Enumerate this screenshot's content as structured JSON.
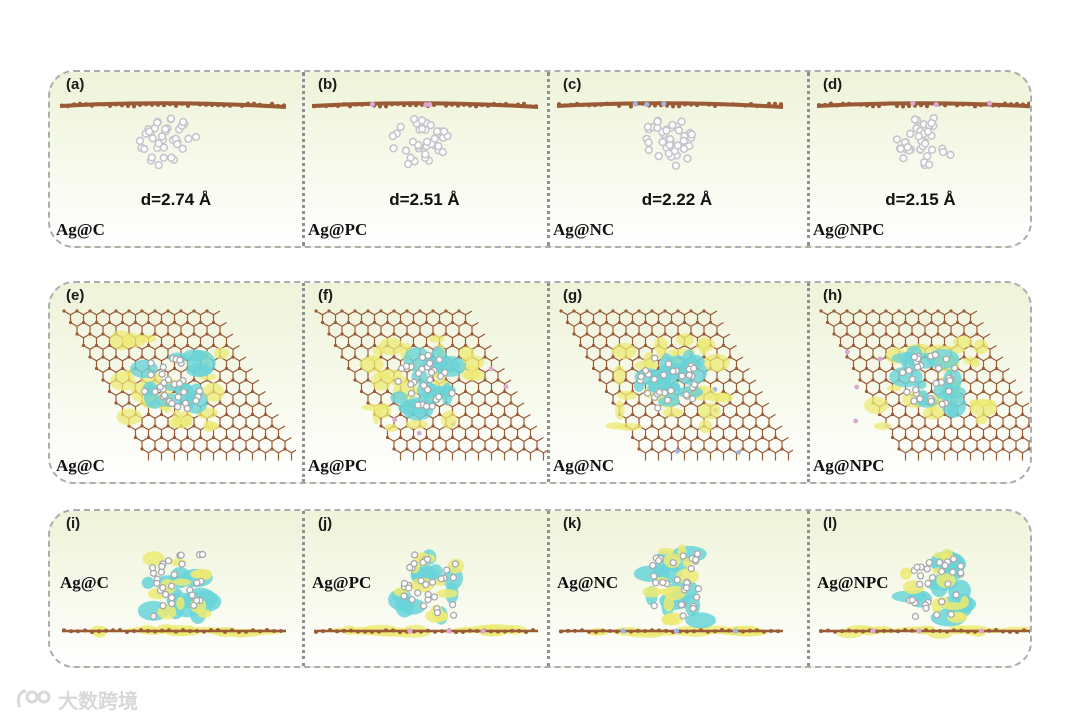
{
  "rows": [
    {
      "panels": [
        {
          "label": "(a)",
          "name": "Ag@C",
          "distance": "d=2.74 Å",
          "variant": "C"
        },
        {
          "label": "(b)",
          "name": "Ag@PC",
          "distance": "d=2.51 Å",
          "variant": "PC"
        },
        {
          "label": "(c)",
          "name": "Ag@NC",
          "distance": "d=2.22 Å",
          "variant": "NC"
        },
        {
          "label": "(d)",
          "name": "Ag@NPC",
          "distance": "d=2.15 Å",
          "variant": "NPC"
        }
      ]
    },
    {
      "panels": [
        {
          "label": "(e)",
          "name": "Ag@C"
        },
        {
          "label": "(f)",
          "name": "Ag@PC"
        },
        {
          "label": "(g)",
          "name": "Ag@NC"
        },
        {
          "label": "(h)",
          "name": "Ag@NPC"
        }
      ]
    },
    {
      "panels": [
        {
          "label": "(i)",
          "name": "Ag@C"
        },
        {
          "label": "(j)",
          "name": "Ag@PC"
        },
        {
          "label": "(k)",
          "name": "Ag@NC"
        },
        {
          "label": "(l)",
          "name": "Ag@NPC"
        }
      ]
    }
  ],
  "colors": {
    "carbon": "#9a5a36",
    "silver": "#c4c6cb",
    "charge_accumulation": "#ecea73",
    "charge_depletion": "#69d3d8",
    "dopant_p": "#d9a7cf",
    "dopant_n": "#9fb6e0"
  },
  "watermark": "大数跨境"
}
